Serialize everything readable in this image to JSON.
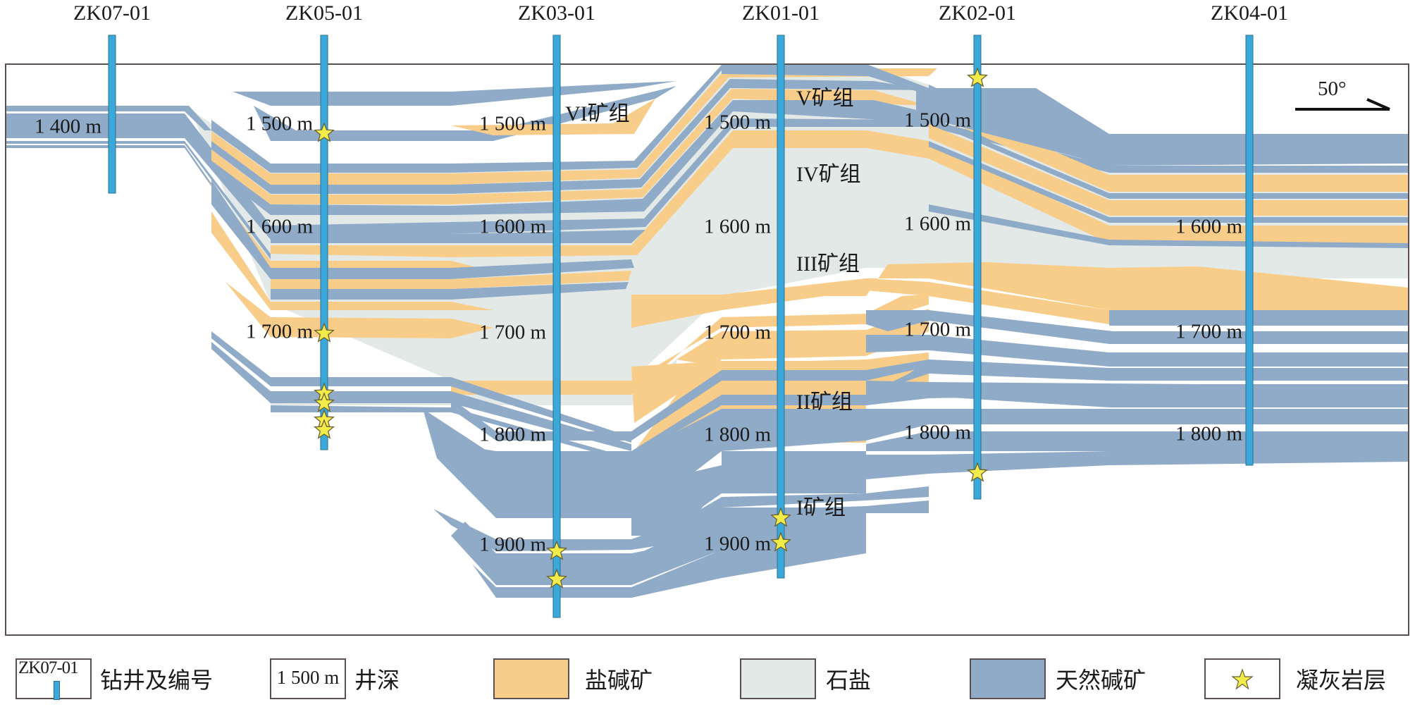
{
  "wells": [
    {
      "id": "ZK07-01"
    },
    {
      "id": "ZK05-01"
    },
    {
      "id": "ZK03-01"
    },
    {
      "id": "ZK01-01"
    },
    {
      "id": "ZK02-01"
    },
    {
      "id": "ZK04-01"
    }
  ],
  "depth_labels": {
    "zk07": [
      "1 400 m"
    ],
    "zk05": [
      "1 500 m",
      "1 600 m",
      "1 700 m"
    ],
    "zk03": [
      "1 500 m",
      "1 600 m",
      "1 700 m",
      "1 800 m",
      "1 900 m"
    ],
    "zk01": [
      "1 500 m",
      "1 600 m",
      "1 700 m",
      "1 800 m",
      "1 900 m"
    ],
    "zk02": [
      "1 500 m",
      "1 600 m",
      "1 700 m",
      "1 800 m"
    ],
    "zk04": [
      "1 600 m",
      "1 700 m",
      "1 800 m"
    ]
  },
  "ore_groups": [
    "VI矿组",
    "V矿组",
    "IV矿组",
    "III矿组",
    "II矿组",
    "I矿组"
  ],
  "direction": {
    "label": "50°"
  },
  "colors": {
    "trona": "#8fabc8",
    "salt_alkali": "#f8cd8a",
    "rock_salt": "#e3e9e7",
    "well": "#3aa8d8",
    "tuff_star": "#f2ec4a",
    "frame": "#5a5050"
  },
  "legend": [
    {
      "key": "well",
      "sample": "ZK07-01",
      "label": "钻井及编号"
    },
    {
      "key": "depth",
      "sample": "1 500 m",
      "label": "井深"
    },
    {
      "key": "salt_alkali",
      "label": "盐碱矿"
    },
    {
      "key": "rock_salt",
      "label": "石盐"
    },
    {
      "key": "trona",
      "label": "天然碱矿"
    },
    {
      "key": "tuff",
      "label": "凝灰岩层"
    }
  ]
}
